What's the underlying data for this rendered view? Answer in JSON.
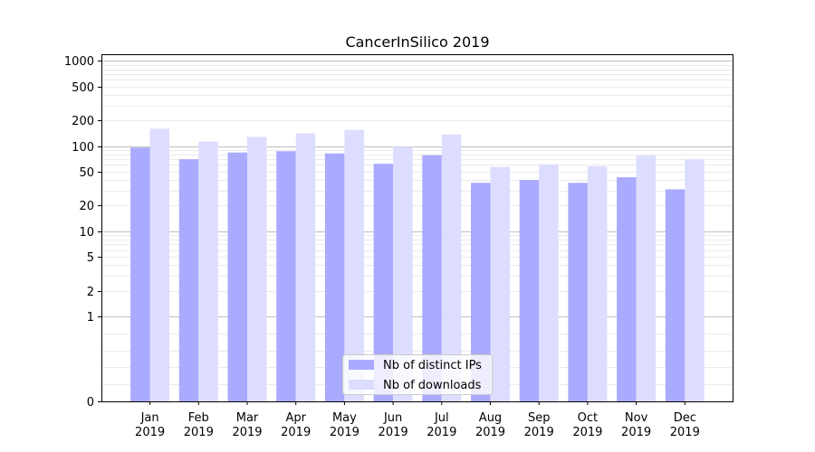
{
  "chart_data": {
    "type": "bar",
    "title": "CancerInSilico 2019",
    "xlabel": "",
    "ylabel": "",
    "scale": "symlog",
    "categories": [
      {
        "month": "Jan",
        "year": "2019"
      },
      {
        "month": "Feb",
        "year": "2019"
      },
      {
        "month": "Mar",
        "year": "2019"
      },
      {
        "month": "Apr",
        "year": "2019"
      },
      {
        "month": "May",
        "year": "2019"
      },
      {
        "month": "Jun",
        "year": "2019"
      },
      {
        "month": "Jul",
        "year": "2019"
      },
      {
        "month": "Aug",
        "year": "2019"
      },
      {
        "month": "Sep",
        "year": "2019"
      },
      {
        "month": "Oct",
        "year": "2019"
      },
      {
        "month": "Nov",
        "year": "2019"
      },
      {
        "month": "Dec",
        "year": "2019"
      }
    ],
    "series": [
      {
        "name": "Nb of distinct IPs",
        "color": "#aaaaff",
        "values": [
          96,
          70,
          84,
          87,
          82,
          62,
          78,
          37,
          40,
          37,
          43,
          31
        ]
      },
      {
        "name": "Nb of downloads",
        "color": "#ddddff",
        "values": [
          160,
          113,
          128,
          141,
          155,
          98,
          137,
          57,
          61,
          58,
          77,
          70
        ]
      }
    ],
    "ylim": [
      0,
      1200
    ],
    "yticks": [
      {
        "value": 0,
        "label": "0"
      },
      {
        "value": 1,
        "label": "1"
      },
      {
        "value": 2,
        "label": "2"
      },
      {
        "value": 5,
        "label": "5"
      },
      {
        "value": 10,
        "label": "10"
      },
      {
        "value": 20,
        "label": "20"
      },
      {
        "value": 50,
        "label": "50"
      },
      {
        "value": 100,
        "label": "100"
      },
      {
        "value": 200,
        "label": "200"
      },
      {
        "value": 500,
        "label": "500"
      },
      {
        "value": 1000,
        "label": "1000"
      }
    ],
    "major_gridlines": [
      1,
      10,
      100,
      1000
    ],
    "grid": true,
    "legend_position": "bottom-center"
  }
}
